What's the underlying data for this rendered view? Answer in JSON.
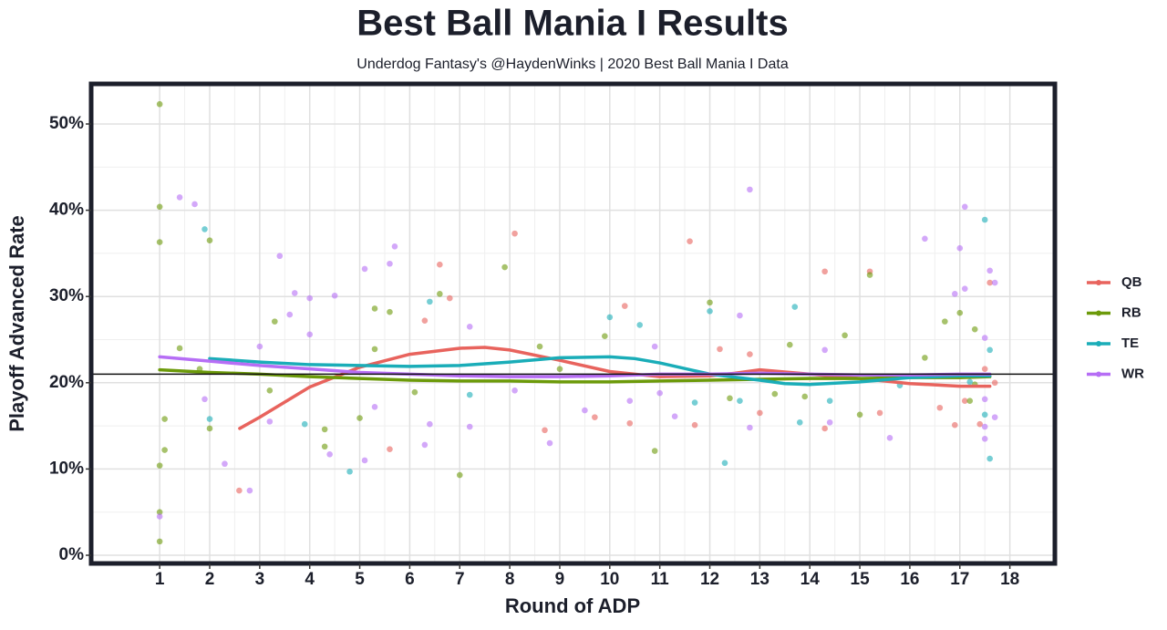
{
  "chart_data": {
    "type": "scatter",
    "title": "Best Ball Mania I Results",
    "subtitle": "Underdog Fantasy's @HaydenWinks | 2020 Best Ball Mania I Data",
    "x_label": "Round of ADP",
    "y_label": "Playoff Advanced Rate",
    "xlim": [
      -0.37,
      18.9
    ],
    "ylim": [
      -0.95,
      54.65
    ],
    "xticks": [
      1,
      2,
      3,
      4,
      5,
      6,
      7,
      8,
      9,
      10,
      11,
      12,
      13,
      14,
      15,
      16,
      17,
      18
    ],
    "yticks": [
      {
        "value": 0,
        "label": "0%"
      },
      {
        "value": 10,
        "label": "10%"
      },
      {
        "value": 20,
        "label": "20%"
      },
      {
        "value": 30,
        "label": "30%"
      },
      {
        "value": 40,
        "label": "40%"
      },
      {
        "value": 50,
        "label": "50%"
      }
    ],
    "grid": true,
    "legend_position": "right",
    "reference_line": 21,
    "series": [
      {
        "name": "QB",
        "color": "#e8635d",
        "x": [
          2.59,
          6.3,
          6.6,
          6.8,
          8.1,
          5.6,
          8.7,
          9.7,
          10.4,
          10.3,
          11.6,
          11.7,
          12.2,
          12.8,
          13.0,
          14.3,
          14.3,
          15.2,
          15.4,
          16.6,
          16.9,
          17.1,
          17.4,
          17.6,
          17.7,
          17.5
        ],
        "values": [
          7.5,
          27.2,
          33.7,
          29.8,
          37.3,
          12.3,
          14.5,
          16,
          15.3,
          28.9,
          36.4,
          15.1,
          23.9,
          23.3,
          16.5,
          32.9,
          14.7,
          32.9,
          16.5,
          17.1,
          15.1,
          17.9,
          15.2,
          31.6,
          20,
          21.6
        ],
        "trend": {
          "x": [
            2.6,
            3,
            4,
            5,
            6,
            7,
            7.5,
            8,
            9,
            10,
            11,
            12,
            12.5,
            13,
            14,
            15,
            16,
            17,
            17.6
          ],
          "values": [
            14.7,
            16,
            19.5,
            21.8,
            23.3,
            24,
            24.1,
            23.8,
            22.6,
            21.3,
            20.7,
            20.8,
            21.1,
            21.5,
            21,
            20.5,
            19.9,
            19.6,
            19.6
          ]
        }
      },
      {
        "name": "RB",
        "color": "#6c9a0a",
        "x": [
          1,
          1,
          1,
          1,
          1,
          1,
          1.1,
          1.1,
          1.4,
          2,
          2,
          1.8,
          3.3,
          3.2,
          4.3,
          4.3,
          5.3,
          5.3,
          5,
          5.6,
          6.1,
          6.6,
          7,
          7.9,
          8.6,
          9,
          9.9,
          10.9,
          12,
          12.4,
          13.3,
          13.6,
          13.9,
          14.7,
          15,
          15.2,
          16.3,
          16.7,
          17,
          17.3,
          17.2,
          17.3
        ],
        "values": [
          52.3,
          40.4,
          36.3,
          10.4,
          5,
          1.6,
          15.8,
          12.2,
          24,
          36.5,
          14.7,
          21.6,
          27.1,
          19.1,
          12.6,
          14.6,
          28.6,
          23.9,
          15.9,
          28.2,
          18.9,
          30.3,
          9.3,
          33.4,
          24.2,
          21.6,
          25.4,
          12.1,
          29.3,
          18.2,
          18.7,
          24.4,
          18.4,
          25.5,
          16.3,
          32.5,
          22.9,
          27.1,
          28.1,
          26.2,
          17.9,
          19.8
        ],
        "trend": {
          "x": [
            1,
            2,
            3,
            4,
            5,
            6,
            7,
            8,
            9,
            10,
            11,
            12,
            13,
            14,
            15,
            16,
            17,
            17.6
          ],
          "values": [
            21.5,
            21.2,
            21,
            20.7,
            20.5,
            20.3,
            20.2,
            20.2,
            20.1,
            20.1,
            20.2,
            20.3,
            20.4,
            20.5,
            20.5,
            20.6,
            20.6,
            20.7
          ]
        }
      },
      {
        "name": "TE",
        "color": "#1aadb8",
        "x": [
          1.9,
          2,
          3.9,
          4.8,
          6.4,
          7.2,
          10,
          10.6,
          11.7,
          12,
          12.3,
          12.6,
          13.7,
          13.8,
          14.4,
          15.8,
          17.5,
          17.6,
          17.6,
          17.5,
          17.2
        ],
        "values": [
          37.8,
          15.8,
          15.2,
          9.7,
          29.4,
          18.6,
          27.6,
          26.7,
          17.7,
          28.3,
          10.7,
          17.9,
          28.8,
          15.4,
          17.9,
          19.7,
          38.9,
          23.8,
          11.2,
          16.3,
          20.1
        ],
        "trend": {
          "x": [
            2,
            3,
            4,
            5,
            6,
            7,
            8,
            9,
            10,
            10.5,
            11,
            12,
            13,
            13.5,
            14,
            15,
            16,
            17,
            17.6
          ],
          "values": [
            22.8,
            22.4,
            22.1,
            22,
            21.9,
            22,
            22.4,
            22.9,
            23,
            22.8,
            22.3,
            21,
            20.3,
            19.9,
            19.8,
            20.1,
            20.6,
            20.8,
            20.8
          ]
        }
      },
      {
        "name": "WR",
        "color": "#b66ef5",
        "x": [
          1,
          1.4,
          1.7,
          1.9,
          2.3,
          2.8,
          3,
          3.2,
          3.4,
          3.7,
          3.6,
          4,
          4,
          4.5,
          4.4,
          5.1,
          5.1,
          5.3,
          5.6,
          5.7,
          6.3,
          6.4,
          7.2,
          7.2,
          8.1,
          8.8,
          9.5,
          10.4,
          10.9,
          11,
          11.3,
          12.6,
          12.8,
          12.8,
          14.3,
          14.4,
          15.6,
          16.3,
          16.9,
          17,
          17.1,
          17.1,
          17.5,
          17.5,
          17.6,
          17.7,
          17.5,
          17.7,
          17.5
        ],
        "values": [
          4.5,
          41.5,
          40.7,
          18.1,
          10.6,
          7.5,
          24.2,
          15.5,
          34.7,
          30.4,
          27.9,
          29.8,
          25.6,
          30.1,
          11.7,
          33.2,
          11,
          17.2,
          33.8,
          35.8,
          12.8,
          15.2,
          26.5,
          14.9,
          19.1,
          13,
          16.8,
          17.9,
          24.2,
          18.8,
          16.1,
          27.8,
          42.4,
          14.8,
          23.8,
          15.4,
          13.6,
          36.7,
          30.3,
          35.6,
          40.4,
          30.9,
          14.9,
          13.5,
          33,
          31.6,
          18.1,
          16,
          25.2
        ],
        "trend": {
          "x": [
            1,
            2,
            3,
            4,
            5,
            6,
            7,
            8,
            9,
            10,
            11,
            12,
            13,
            14,
            15,
            16,
            17,
            17.6
          ],
          "values": [
            23,
            22.5,
            22,
            21.6,
            21.2,
            21,
            20.8,
            20.7,
            20.7,
            20.8,
            21,
            21,
            21.1,
            21,
            20.9,
            20.9,
            21,
            21
          ]
        }
      }
    ]
  }
}
